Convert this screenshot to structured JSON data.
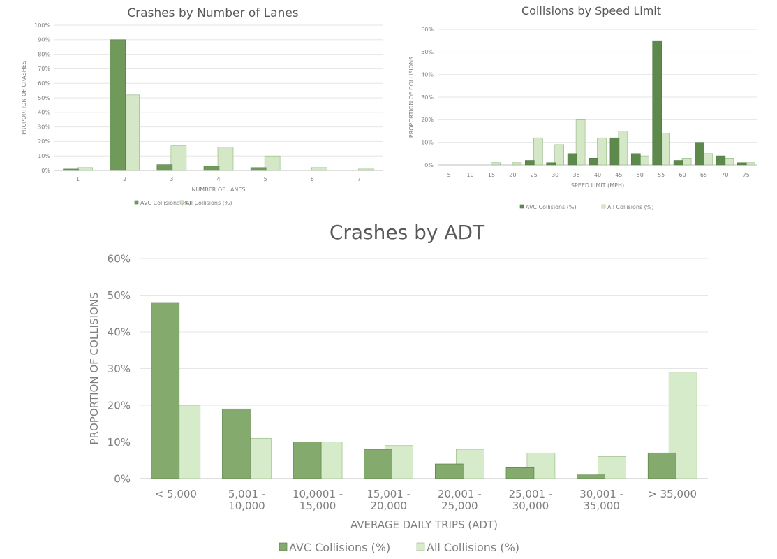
{
  "chart_data": [
    {
      "id": "lanes",
      "type": "bar",
      "title": "Crashes by Number of Lanes",
      "xlabel": "NUMBER OF LANES",
      "ylabel": "PROPORTION OF CRASHES",
      "categories": [
        "1",
        "2",
        "3",
        "4",
        "5",
        "6",
        "7"
      ],
      "series": [
        {
          "name": "AVC Collisions (%)",
          "values": [
            1,
            90,
            4,
            3,
            2,
            0,
            0
          ],
          "color": "#6f9a5a"
        },
        {
          "name": "All Collisions (%)",
          "values": [
            2,
            52,
            17,
            16,
            10,
            2,
            1
          ],
          "color": "#d4e8c8"
        }
      ],
      "ylim": [
        0,
        100
      ],
      "yticks": [
        "0%",
        "10%",
        "20%",
        "30%",
        "40%",
        "50%",
        "60%",
        "70%",
        "80%",
        "90%",
        "100%"
      ],
      "grid": true,
      "legend": "bottom"
    },
    {
      "id": "speed",
      "type": "bar",
      "title": "Collisions by Speed Limit",
      "xlabel": "SPEED LIMIT (MPH)",
      "ylabel": "PROPORTION OF COLLISIONS",
      "categories": [
        "5",
        "10",
        "15",
        "20",
        "25",
        "30",
        "35",
        "40",
        "45",
        "50",
        "55",
        "60",
        "65",
        "70",
        "75"
      ],
      "series": [
        {
          "name": "AVC Collisions (%)",
          "values": [
            0,
            0,
            0,
            0,
            2,
            1,
            5,
            3,
            12,
            5,
            55,
            2,
            10,
            4,
            1
          ],
          "color": "#5d8a4c"
        },
        {
          "name": "All Collisions (%)",
          "values": [
            0,
            0,
            1,
            1,
            12,
            9,
            20,
            12,
            15,
            4,
            14,
            3,
            5,
            3,
            1
          ],
          "color": "#d4e8c8"
        }
      ],
      "ylim": [
        0,
        60
      ],
      "yticks": [
        "0%",
        "10%",
        "20%",
        "30%",
        "40%",
        "50%",
        "60%"
      ],
      "grid": true,
      "legend": "bottom"
    },
    {
      "id": "adt",
      "type": "bar",
      "title": "Crashes by ADT",
      "xlabel": "AVERAGE DAILY TRIPS (ADT)",
      "ylabel": "PROPORTION OF COLLISIONS",
      "categories": [
        [
          "< 5,000"
        ],
        [
          "5,001 -",
          "10,000"
        ],
        [
          "10,0001 -",
          "15,000"
        ],
        [
          "15,001 -",
          "20,000"
        ],
        [
          "20,001 -",
          "25,000"
        ],
        [
          "25,001 -",
          "30,000"
        ],
        [
          "30,001 -",
          "35,000"
        ],
        [
          "> 35,000"
        ]
      ],
      "series": [
        {
          "name": "AVC Collisions (%)",
          "values": [
            48,
            19,
            10,
            8,
            4,
            3,
            1,
            7
          ],
          "color": "#84ab6d"
        },
        {
          "name": "All Collisions (%)",
          "values": [
            20,
            11,
            10,
            9,
            8,
            7,
            6,
            29
          ],
          "color": "#d6ebc9"
        }
      ],
      "ylim": [
        0,
        60
      ],
      "yticks": [
        "0%",
        "10%",
        "20%",
        "30%",
        "40%",
        "50%",
        "60%"
      ],
      "grid": true,
      "legend": "bottom"
    }
  ]
}
